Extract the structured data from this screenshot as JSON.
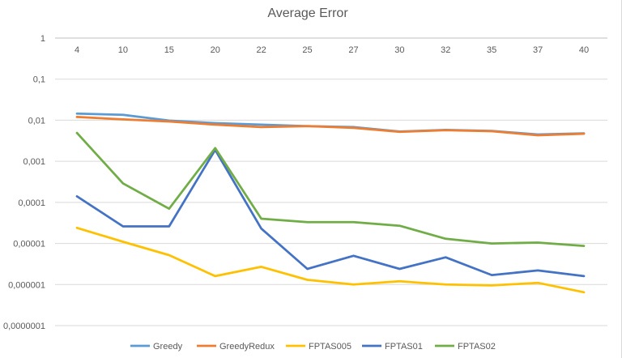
{
  "chart_data": {
    "type": "line",
    "title": "Average Error",
    "xlabel": "",
    "ylabel": "",
    "y_scale": "log",
    "ylim": [
      1e-07,
      1
    ],
    "y_ticks": [
      "1",
      "0,1",
      "0,01",
      "0,001",
      "0,0001",
      "0,00001",
      "0,000001",
      "0,0000001"
    ],
    "x_axis_position": "top",
    "grid": true,
    "legend_position": "bottom",
    "categories": [
      "4",
      "10",
      "15",
      "20",
      "22",
      "25",
      "27",
      "30",
      "32",
      "35",
      "37",
      "40"
    ],
    "series": [
      {
        "name": "Greedy",
        "color": "#5b9bd5",
        "values": [
          0.0145,
          0.0135,
          0.0098,
          0.0085,
          0.0078,
          0.0072,
          0.0068,
          0.0053,
          0.0058,
          0.0055,
          0.0045,
          0.0048
        ]
      },
      {
        "name": "GreedyRedux",
        "color": "#ed7d31",
        "values": [
          0.012,
          0.0105,
          0.0093,
          0.0078,
          0.0068,
          0.0072,
          0.0065,
          0.0052,
          0.0057,
          0.0054,
          0.0043,
          0.0047
        ]
      },
      {
        "name": "FPTAS005",
        "color": "#ffc000",
        "values": [
          2.4e-05,
          1.1e-05,
          5.2e-06,
          1.6e-06,
          2.7e-06,
          1.3e-06,
          1e-06,
          1.2e-06,
          1e-06,
          9.5e-07,
          1.1e-06,
          6.5e-07
        ]
      },
      {
        "name": "FPTAS01",
        "color": "#4472c4",
        "values": [
          0.00014,
          2.6e-05,
          2.6e-05,
          0.0019,
          2.3e-05,
          2.4e-06,
          5e-06,
          2.4e-06,
          4.6e-06,
          1.7e-06,
          2.2e-06,
          1.6e-06
        ]
      },
      {
        "name": "FPTAS02",
        "color": "#70ad47",
        "values": [
          0.0049,
          0.00029,
          7e-05,
          0.0021,
          4e-05,
          3.3e-05,
          3.3e-05,
          2.7e-05,
          1.3e-05,
          1e-05,
          1.05e-05,
          8.7e-06
        ]
      }
    ]
  }
}
